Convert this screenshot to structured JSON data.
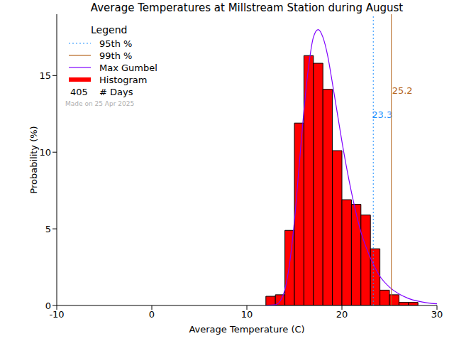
{
  "chart_data": {
    "type": "histogram",
    "title": "Average Temperatures at Millstream Station during August",
    "x_label": "Average Temperature (C)",
    "y_label": "Probability (%)",
    "bins": [
      12,
      13,
      14,
      15,
      16,
      17,
      18,
      19,
      20,
      21,
      22,
      23,
      24,
      25,
      26,
      27,
      28
    ],
    "values": [
      0.6,
      0.7,
      4.9,
      11.9,
      16.3,
      15.8,
      14.1,
      10.1,
      6.9,
      6.6,
      5.9,
      3.7,
      1.0,
      0.7,
      0.2,
      0.2
    ],
    "color": "#ff0000",
    "xlim": [
      -10,
      30
    ],
    "xticks": [
      -10,
      0,
      10,
      20,
      30
    ],
    "ylim": [
      0,
      19
    ],
    "yticks": [
      0,
      5,
      10,
      15
    ],
    "series": [
      {
        "name": "Max Gumbel",
        "color": "#7f00ff",
        "type": "line",
        "x": [
          12,
          13,
          13.5,
          14,
          14.5,
          15,
          15.5,
          16,
          16.5,
          17,
          17.5,
          18,
          18.5,
          19,
          19.5,
          20,
          21,
          22,
          23,
          24,
          25,
          26,
          27,
          28,
          29,
          30
        ],
        "values": [
          0,
          0.05,
          0.29,
          1.04,
          2.75,
          5.5,
          9.1,
          12.7,
          15.6,
          17.5,
          18.0,
          17.5,
          16.3,
          14.5,
          12.6,
          10.7,
          7.4,
          4.8,
          3.1,
          1.9,
          1.2,
          0.75,
          0.46,
          0.28,
          0.17,
          0.11
        ]
      }
    ],
    "reference_lines": [
      {
        "name": "95th %",
        "value": 23.3,
        "color": "#1e90ff",
        "line_style": "dotted"
      },
      {
        "name": "99th %",
        "value": 25.2,
        "color": "#b5651d",
        "line_style": "solid"
      }
    ],
    "legend_title": "Legend",
    "histogram_name": "Histogram",
    "days": 405,
    "days_label": "# Days",
    "annotation": "Made on 25 Apr 2025"
  }
}
